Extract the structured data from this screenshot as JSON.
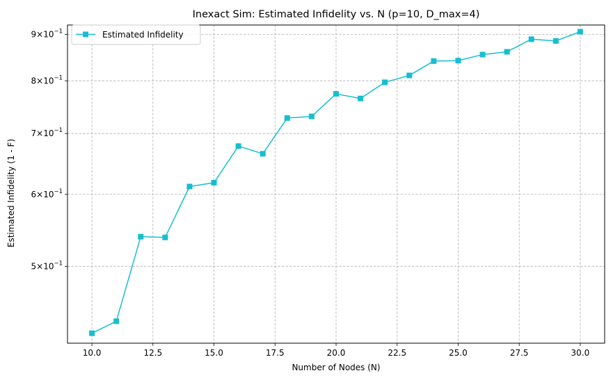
{
  "chart_data": {
    "type": "line",
    "title": "Inexact Sim: Estimated Infidelity vs. N (p=10, D_max=4)",
    "xlabel": "Number of Nodes (N)",
    "ylabel": "Estimated Infidelity (1 - F)",
    "xlim": [
      9.0,
      31.0
    ],
    "ylim": [
      0.4115,
      0.9215
    ],
    "yscale": "log",
    "grid": true,
    "legend_position": "top-left",
    "x_ticks": [
      10.0,
      12.5,
      15.0,
      17.5,
      20.0,
      22.5,
      25.0,
      27.5,
      30.0
    ],
    "x_tick_labels": [
      "10.0",
      "12.5",
      "15.0",
      "17.5",
      "20.0",
      "22.5",
      "25.0",
      "27.5",
      "30.0"
    ],
    "y_ticks": [
      0.5,
      0.6,
      0.7,
      0.8,
      0.9
    ],
    "y_tick_mantissas": [
      "5",
      "6",
      "7",
      "8",
      "9"
    ],
    "y_tick_base": "10",
    "y_tick_exponent": "−1",
    "series": [
      {
        "name": "Estimated Infidelity",
        "color": "#17becf",
        "marker": "square",
        "x": [
          10,
          11,
          12,
          13,
          14,
          15,
          16,
          17,
          18,
          19,
          20,
          21,
          22,
          23,
          24,
          25,
          26,
          27,
          28,
          29,
          30
        ],
        "y": [
          0.422,
          0.435,
          0.539,
          0.538,
          0.612,
          0.618,
          0.678,
          0.665,
          0.728,
          0.731,
          0.774,
          0.765,
          0.797,
          0.811,
          0.841,
          0.842,
          0.855,
          0.861,
          0.889,
          0.885,
          0.906
        ]
      }
    ]
  }
}
